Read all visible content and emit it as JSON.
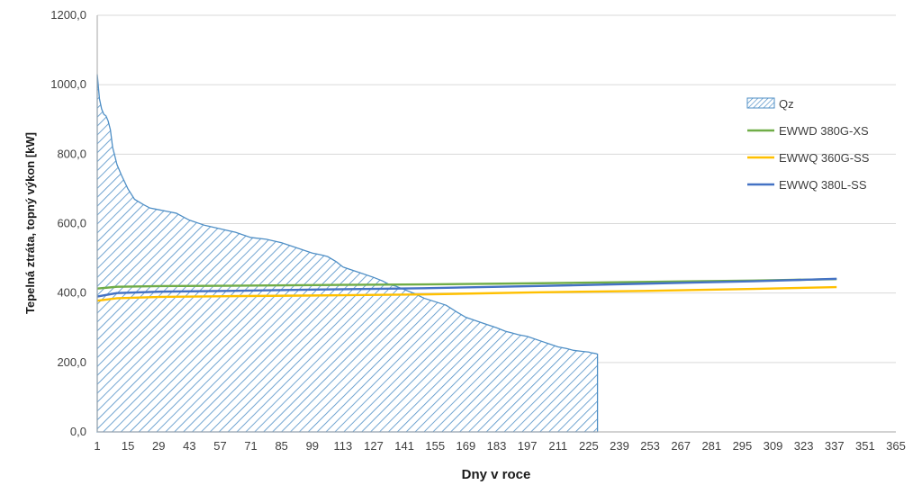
{
  "chart_data": {
    "type": "area",
    "xlabel": "Dny v roce",
    "ylabel": "Tepelná ztráta, topný výkon [kW]",
    "xlim": [
      1,
      365
    ],
    "ylim": [
      0,
      1200
    ],
    "y_ticks": [
      "0,0",
      "200,0",
      "400,0",
      "600,0",
      "800,0",
      "1000,0",
      "1200,0"
    ],
    "x_ticks": [
      "1",
      "15",
      "29",
      "43",
      "57",
      "71",
      "85",
      "99",
      "113",
      "127",
      "141",
      "155",
      "169",
      "183",
      "197",
      "211",
      "225",
      "239",
      "253",
      "267",
      "281",
      "295",
      "309",
      "323",
      "337",
      "351",
      "365"
    ],
    "grid": "horizontal",
    "legend_position": "right",
    "series": [
      {
        "name": "Qz",
        "style": "hatched-area",
        "color": "#4f8fc6",
        "x": [
          1,
          2,
          3,
          4,
          5,
          6,
          7,
          8,
          10,
          12,
          15,
          18,
          22,
          25,
          29,
          33,
          37,
          40,
          43,
          50,
          57,
          64,
          71,
          78,
          85,
          92,
          99,
          103,
          106,
          110,
          113,
          120,
          127,
          131,
          134,
          137,
          141,
          145,
          150,
          155,
          160,
          165,
          169,
          176,
          183,
          187,
          190,
          193,
          197,
          204,
          211,
          215,
          218,
          222,
          225,
          226,
          228,
          229
        ],
        "values": [
          1030,
          960,
          930,
          915,
          910,
          895,
          870,
          820,
          770,
          740,
          700,
          670,
          655,
          645,
          640,
          635,
          630,
          620,
          610,
          595,
          585,
          575,
          560,
          555,
          545,
          530,
          515,
          510,
          505,
          490,
          475,
          460,
          445,
          435,
          425,
          420,
          410,
          400,
          385,
          375,
          365,
          345,
          330,
          315,
          300,
          290,
          285,
          280,
          275,
          260,
          245,
          240,
          235,
          232,
          230,
          228,
          226,
          224
        ]
      },
      {
        "name": "EWWD 380G-XS",
        "style": "line",
        "color": "#70ad47",
        "x": [
          1,
          10,
          30,
          60,
          100,
          150,
          200,
          250,
          300,
          338
        ],
        "values": [
          413,
          418,
          420,
          421,
          423,
          425,
          428,
          432,
          436,
          440
        ]
      },
      {
        "name": "EWWQ 360G-SS",
        "style": "line",
        "color": "#ffc000",
        "x": [
          1,
          10,
          30,
          60,
          100,
          150,
          200,
          250,
          300,
          338
        ],
        "values": [
          378,
          385,
          389,
          391,
          393,
          396,
          402,
          406,
          412,
          417
        ]
      },
      {
        "name": "EWWQ 380L-SS",
        "style": "line",
        "color": "#4472c4",
        "x": [
          1,
          10,
          30,
          60,
          100,
          150,
          200,
          250,
          300,
          338
        ],
        "values": [
          390,
          400,
          404,
          406,
          410,
          414,
          420,
          427,
          434,
          441
        ]
      }
    ]
  }
}
